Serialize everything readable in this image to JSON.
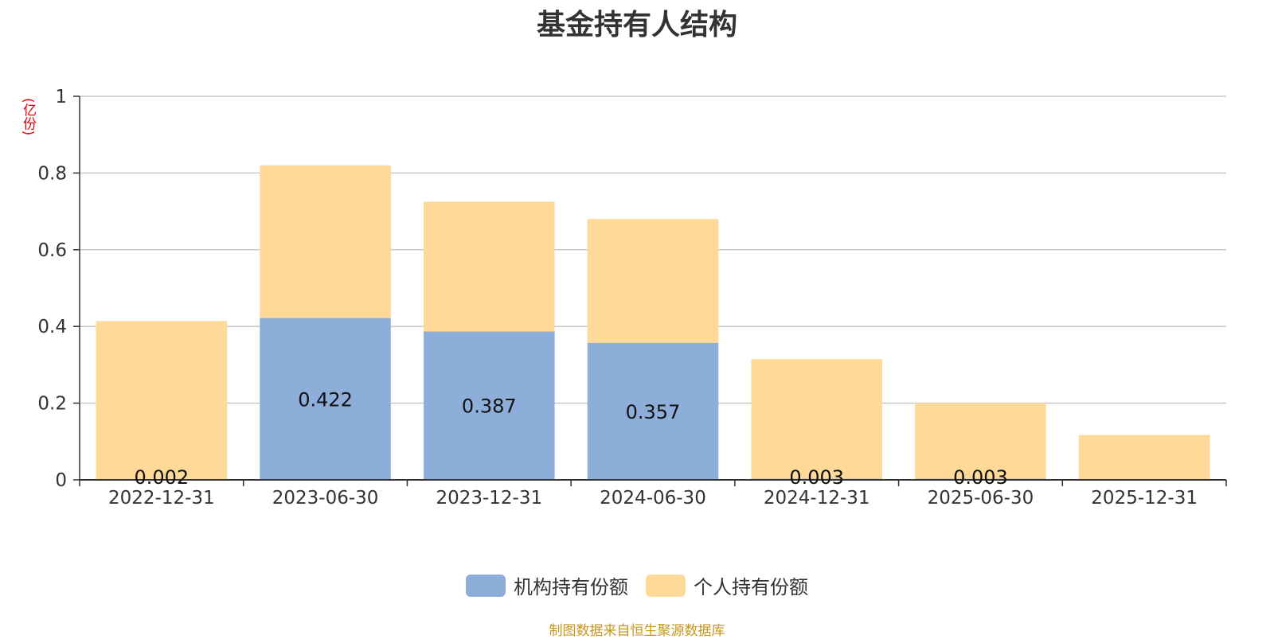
{
  "chart_data": {
    "type": "bar",
    "stacked": true,
    "title": "基金持有人结构",
    "unit_label": "(亿份)",
    "categories": [
      "2022-12-31",
      "2023-06-30",
      "2023-12-31",
      "2024-06-30",
      "2024-12-31",
      "2025-06-30",
      "2025-12-31"
    ],
    "series": [
      {
        "name": "机构持有份额",
        "color": "#8eaeda",
        "values": [
          0.002,
          0.422,
          0.387,
          0.357,
          0.003,
          0.003,
          0.0
        ],
        "labels": [
          "0.002",
          "0.422",
          "0.387",
          "0.357",
          "0.003",
          "0.003",
          ""
        ]
      },
      {
        "name": "个人持有份额",
        "color": "#fed998",
        "values": [
          0.412,
          0.398,
          0.338,
          0.323,
          0.312,
          0.197,
          0.117
        ]
      }
    ],
    "ylim": [
      0,
      1
    ],
    "yticks": [
      "0",
      "0.2",
      "0.4",
      "0.6",
      "0.8",
      "1"
    ],
    "grid": true,
    "legend_position": "bottom-center"
  },
  "source_note": "制图数据来自恒生聚源数据库"
}
